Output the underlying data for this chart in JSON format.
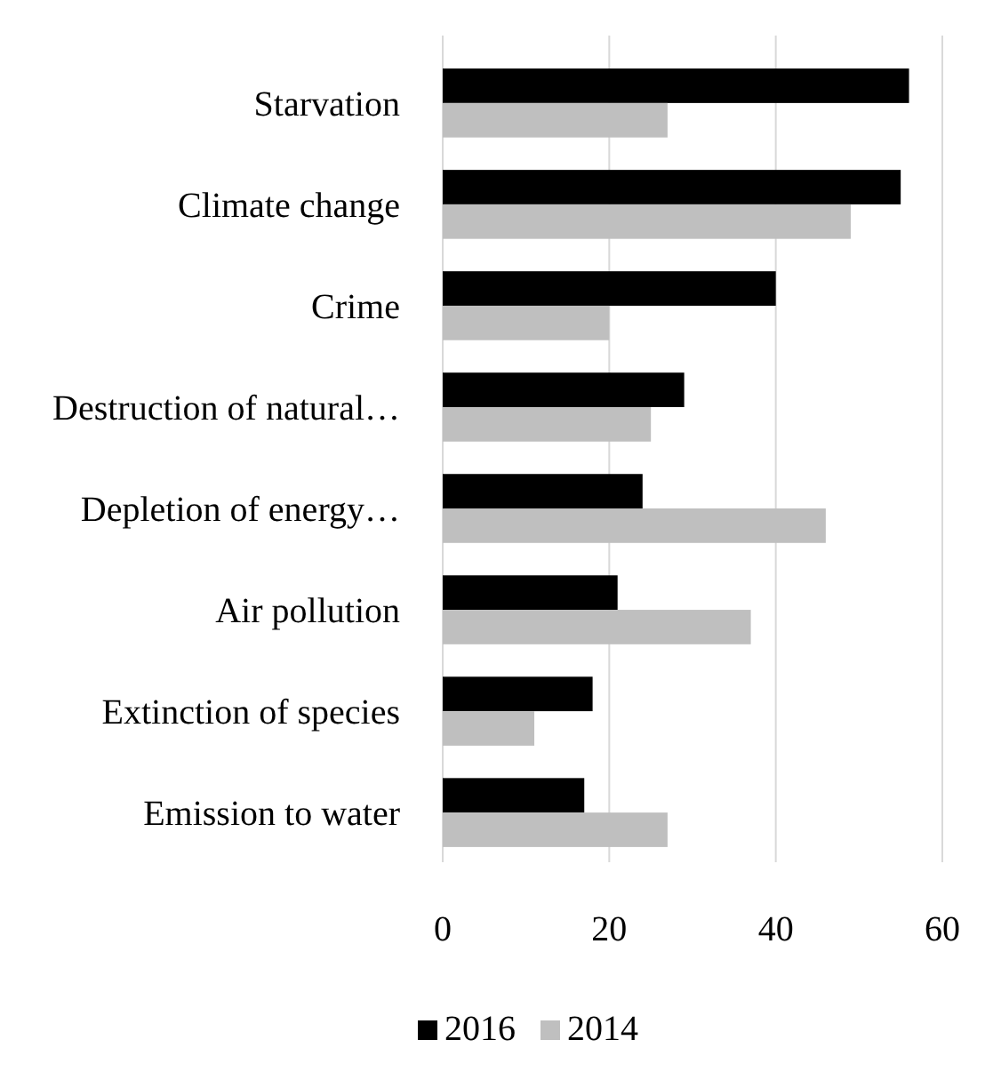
{
  "chart_data": {
    "type": "bar",
    "orientation": "horizontal",
    "categories": [
      "Starvation",
      "Climate change",
      "Crime",
      "Destruction of natural…",
      "Depletion of energy…",
      "Air pollution",
      "Extinction of species",
      "Emission to water"
    ],
    "series": [
      {
        "name": "2016",
        "color": "#000000",
        "values": [
          56,
          55,
          40,
          29,
          24,
          21,
          18,
          17
        ]
      },
      {
        "name": "2014",
        "color": "#bfbfbf",
        "values": [
          27,
          49,
          20,
          25,
          46,
          37,
          11,
          27
        ]
      }
    ],
    "xlim": [
      0,
      60
    ],
    "xticks": [
      0,
      20,
      40,
      60
    ],
    "grid": "x",
    "legend": "bottom"
  }
}
